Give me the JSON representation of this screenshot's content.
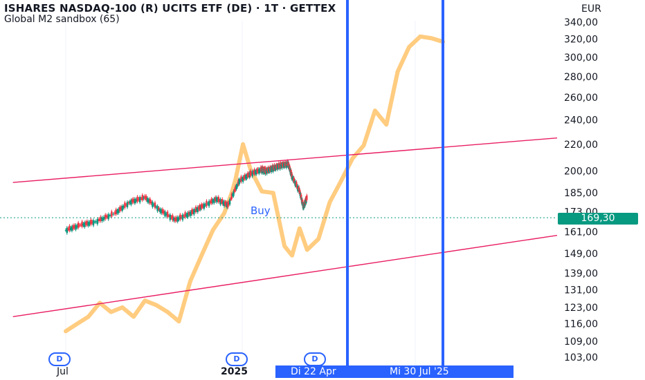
{
  "header": {
    "title": "ISHARES NASDAQ-100 (R) UCITS ETF (DE) · 1T · GETTEX",
    "indicator": "Global M2 sandbox (65)",
    "currency": "EUR"
  },
  "annotations": {
    "buy_label": "Buy",
    "current_price": "169,30",
    "range_start": "Di 22 Apr",
    "range_end": "Mi 30 Jul '25",
    "dividend_marker": "D"
  },
  "x_axis_labels": [
    "Jul",
    "2025"
  ],
  "colors": {
    "price_up": "#089981",
    "price_down": "#f23645",
    "m2_line": "#ffcc80",
    "channel": "#e91e63",
    "marker": "#2962ff",
    "badge": "#089981"
  },
  "chart_data": {
    "type": "line",
    "title": "ISHARES NASDAQ-100 (R) UCITS ETF (DE) · 1T · GETTEX",
    "y_scale": "log",
    "y_ticks": [
      "340,00",
      "320,00",
      "300,00",
      "280,00",
      "260,00",
      "240,00",
      "220,00",
      "200,00",
      "185,00",
      "173,00",
      "161,00",
      "149,00",
      "139,00",
      "131,00",
      "123,00",
      "116,00",
      "109,00",
      "103,00"
    ],
    "y_tick_values": [
      340,
      320,
      300,
      280,
      260,
      240,
      220,
      200,
      185,
      173,
      161,
      149,
      139,
      131,
      123,
      116,
      109,
      103
    ],
    "x_tick_labels": [
      "Jul",
      "2025"
    ],
    "series": [
      {
        "name": "ISHARES NASDAQ-100 (R) UCITS ETF (DE)",
        "kind": "price",
        "t": [
          0,
          0.04,
          0.08,
          0.13,
          0.17,
          0.21,
          0.25,
          0.29,
          0.33,
          0.36,
          0.4,
          0.43,
          0.46,
          0.49,
          0.52,
          0.53,
          0.55,
          0.57,
          0.59,
          0.6,
          0.62,
          0.63,
          0.64
        ],
        "values": [
          162,
          165,
          167,
          172,
          179,
          182,
          174,
          168,
          172,
          176,
          181,
          177,
          193,
          198,
          201,
          200,
          202,
          204,
          205,
          196,
          186,
          176,
          182
        ]
      },
      {
        "name": "Global M2 sandbox (65)",
        "kind": "indicator",
        "t": [
          0,
          0.03,
          0.06,
          0.09,
          0.12,
          0.15,
          0.18,
          0.21,
          0.24,
          0.27,
          0.3,
          0.33,
          0.36,
          0.39,
          0.42,
          0.44,
          0.45,
          0.47,
          0.49,
          0.52,
          0.55,
          0.58,
          0.6,
          0.62,
          0.64,
          0.67,
          0.7,
          0.73,
          0.76,
          0.79,
          0.82,
          0.85,
          0.88,
          0.91,
          0.94,
          0.97,
          1.0
        ],
        "values": [
          113,
          116,
          119,
          125,
          121,
          123,
          119,
          126,
          124,
          121,
          117,
          135,
          148,
          162,
          172,
          185,
          194,
          220,
          201,
          186,
          185,
          153,
          148,
          163,
          151,
          157,
          179,
          193,
          209,
          219,
          248,
          236,
          285,
          311,
          323,
          321,
          317
        ]
      }
    ],
    "channel_lines": [
      {
        "from_t": -0.14,
        "from_value": 192,
        "to_t": 1.0,
        "to_value": 225
      },
      {
        "from_t": -0.14,
        "from_value": 119,
        "to_t": 1.0,
        "to_value": 159
      }
    ],
    "vertical_markers": [
      "Di 22 Apr",
      "Mi 30 Jul '25"
    ],
    "current_price": 169.3,
    "annotations": [
      "Buy",
      "D",
      "D",
      "D"
    ]
  }
}
